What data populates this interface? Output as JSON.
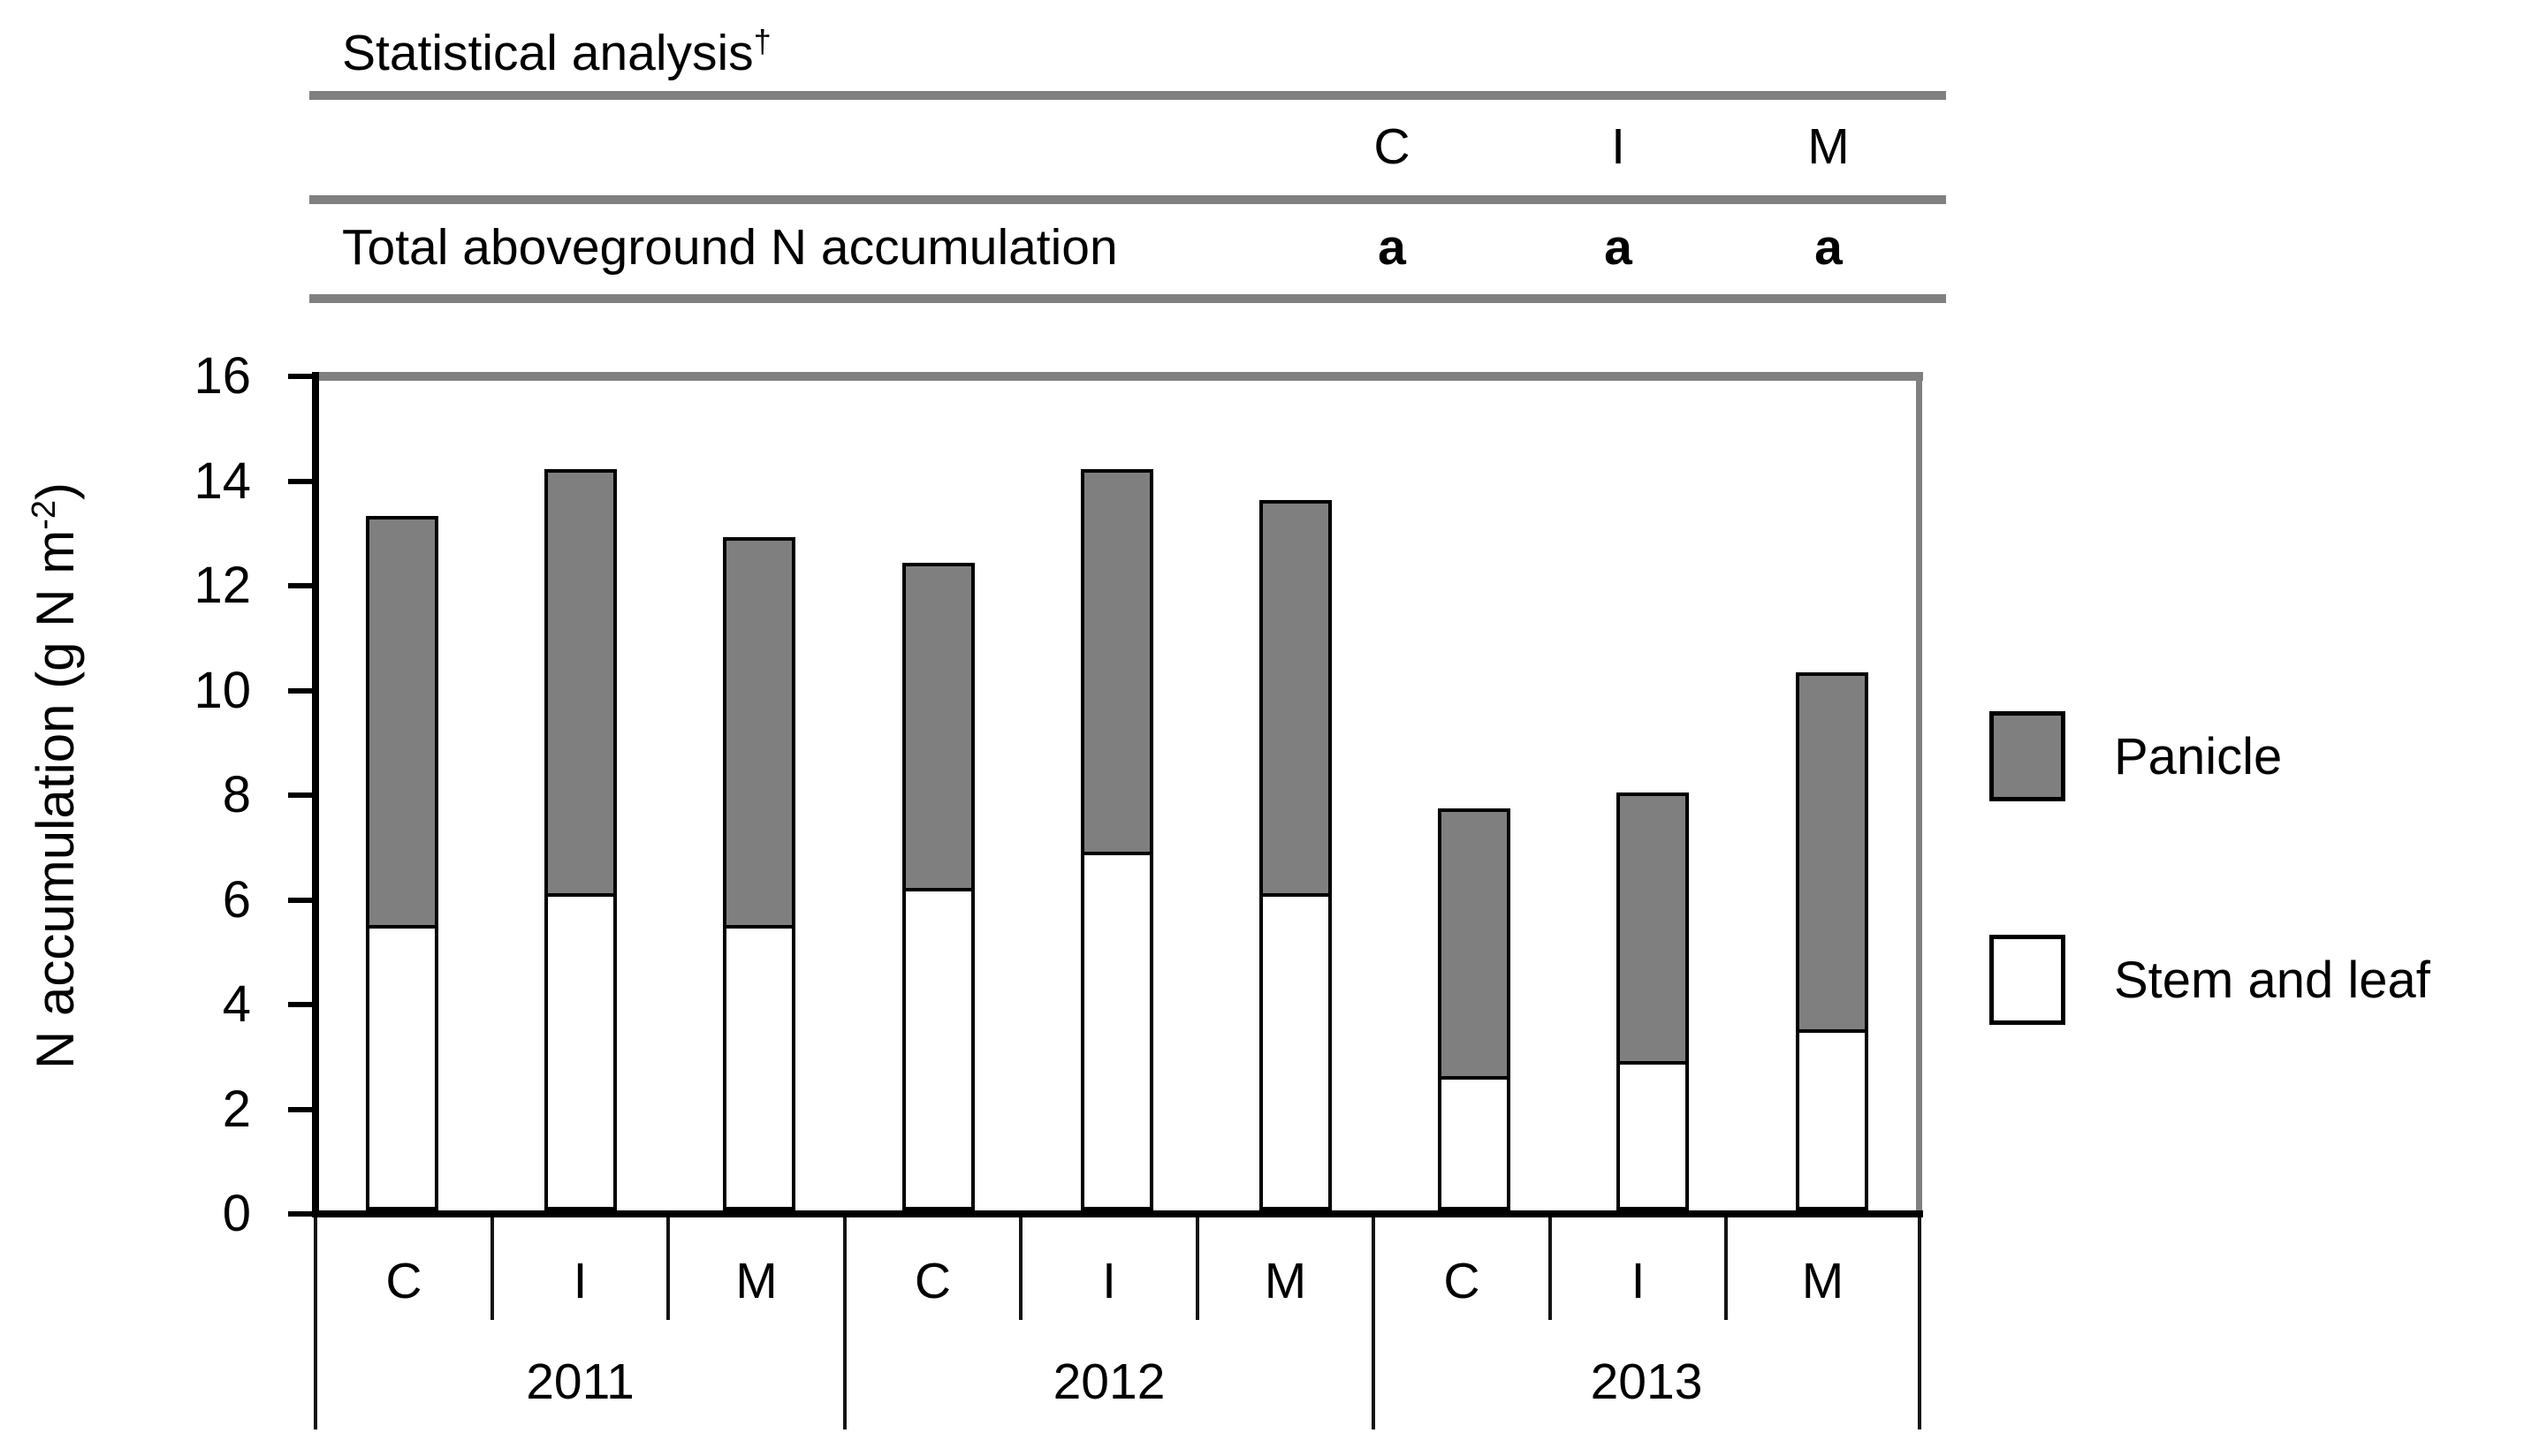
{
  "colors": {
    "panicle_fill": "#7f7f7f",
    "stem_fill": "#ffffff",
    "table_rule": "#808080",
    "axis_black": "#000000",
    "border_gray": "#808080"
  },
  "table": {
    "title": "Statistical analysis",
    "dagger": "†",
    "columns": [
      "C",
      "I",
      "M"
    ],
    "rows": [
      {
        "label": "Total aboveground N accumulation",
        "values": [
          "a",
          "a",
          "a"
        ]
      }
    ]
  },
  "chart_data": {
    "type": "bar",
    "stacked": true,
    "title": "",
    "xlabel": "",
    "ylabel": "N accumulation (g N m⁻²)",
    "ylabel_parts": {
      "main": "N accumulation (g N m",
      "sup": "-2",
      "end": ")"
    },
    "ylim": [
      0,
      16
    ],
    "yticks": [
      0,
      2,
      4,
      6,
      8,
      10,
      12,
      14,
      16
    ],
    "grid": false,
    "legend_position": "right",
    "groups": [
      {
        "label": "2011",
        "treatments": [
          "C",
          "I",
          "M"
        ]
      },
      {
        "label": "2012",
        "treatments": [
          "C",
          "I",
          "M"
        ]
      },
      {
        "label": "2013",
        "treatments": [
          "C",
          "I",
          "M"
        ]
      }
    ],
    "categories": [
      "2011-C",
      "2011-I",
      "2011-M",
      "2012-C",
      "2012-I",
      "2012-M",
      "2013-C",
      "2013-I",
      "2013-M"
    ],
    "series": [
      {
        "name": "Stem and leaf",
        "color": "#ffffff",
        "values": [
          5.4,
          6.0,
          5.4,
          6.1,
          6.8,
          6.0,
          2.5,
          2.8,
          3.4
        ]
      },
      {
        "name": "Panicle",
        "color": "#7f7f7f",
        "values": [
          7.9,
          8.2,
          7.5,
          6.3,
          7.4,
          7.6,
          5.2,
          5.2,
          6.9
        ]
      }
    ],
    "totals": [
      13.3,
      14.2,
      12.9,
      12.4,
      14.2,
      13.6,
      7.7,
      8.0,
      10.3
    ],
    "legend": [
      {
        "label": "Panicle",
        "color": "#7f7f7f"
      },
      {
        "label": "Stem and leaf",
        "color": "#ffffff"
      }
    ]
  }
}
